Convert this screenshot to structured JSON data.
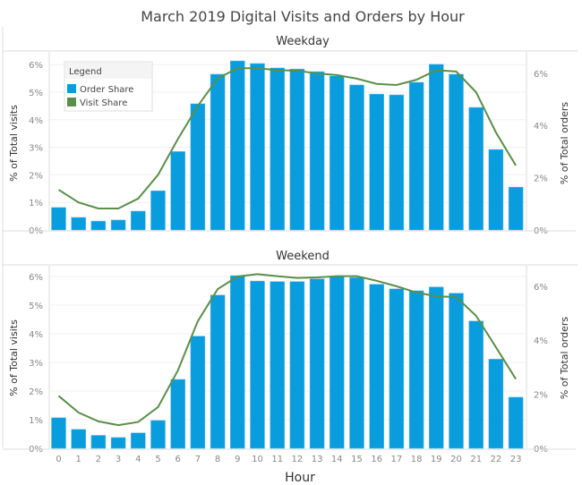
{
  "chart_data": {
    "title": "March 2019 Digital Visits and Orders by Hour",
    "xlabel": "Hour",
    "categories": [
      "0",
      "1",
      "2",
      "3",
      "4",
      "5",
      "6",
      "7",
      "8",
      "9",
      "10",
      "11",
      "12",
      "13",
      "14",
      "15",
      "16",
      "17",
      "18",
      "19",
      "20",
      "21",
      "22",
      "23"
    ],
    "legend": {
      "title": "Legend",
      "placement": "top-left",
      "items": [
        {
          "name": "Order Share",
          "color": "#0a9ddd"
        },
        {
          "name": "Visit Share",
          "color": "#5a8f48"
        }
      ]
    },
    "colors": {
      "bar": "#0a9ddd",
      "line": "#5a8f48"
    },
    "panels": [
      {
        "title": "Weekday",
        "type": "bar+line",
        "left_axis": {
          "label": "% of Total visits",
          "range": [
            0,
            6.5
          ],
          "ticks": [
            "0%",
            "1%",
            "2%",
            "3%",
            "4%",
            "5%",
            "6%"
          ]
        },
        "right_axis": {
          "label": "% of Total orders",
          "range": [
            0,
            6.8
          ],
          "ticks": [
            "0%",
            "2%",
            "4%",
            "6%"
          ]
        },
        "series": [
          {
            "name": "Order Share",
            "type": "bar",
            "axis": "right",
            "values": [
              0.86,
              0.48,
              0.34,
              0.38,
              0.72,
              1.5,
              3.0,
              4.83,
              5.96,
              6.47,
              6.37,
              6.2,
              6.16,
              6.06,
              5.89,
              5.55,
              5.2,
              5.17,
              5.65,
              6.34,
              5.96,
              4.69,
              3.08,
              1.64
            ]
          },
          {
            "name": "Visit Share",
            "type": "line",
            "axis": "left",
            "values": [
              1.46,
              1.0,
              0.78,
              0.78,
              1.14,
              2.0,
              3.3,
              4.5,
              5.5,
              5.87,
              5.87,
              5.8,
              5.78,
              5.68,
              5.62,
              5.49,
              5.3,
              5.26,
              5.45,
              5.8,
              5.75,
              5.0,
              3.54,
              2.34
            ]
          }
        ]
      },
      {
        "title": "Weekend",
        "type": "bar+line",
        "left_axis": {
          "label": "% of Total visits",
          "range": [
            0,
            6.5
          ],
          "ticks": [
            "0%",
            "1%",
            "2%",
            "3%",
            "4%",
            "5%",
            "6%"
          ]
        },
        "right_axis": {
          "label": "% of Total orders",
          "range": [
            0,
            6.8
          ],
          "ticks": [
            "0%",
            "2%",
            "4%",
            "6%"
          ]
        },
        "series": [
          {
            "name": "Order Share",
            "type": "bar",
            "axis": "right",
            "values": [
              1.13,
              0.7,
              0.48,
              0.4,
              0.57,
              1.03,
              2.55,
              4.15,
              5.67,
              6.39,
              6.19,
              6.17,
              6.17,
              6.27,
              6.37,
              6.32,
              6.07,
              5.9,
              5.83,
              5.97,
              5.74,
              4.71,
              3.3,
              1.89
            ]
          },
          {
            "name": "Visit Share",
            "type": "line",
            "axis": "left",
            "values": [
              1.83,
              1.25,
              0.94,
              0.81,
              0.92,
              1.44,
              2.72,
              4.44,
              5.56,
              6.0,
              6.08,
              6.01,
              5.95,
              5.97,
              6.01,
              6.01,
              5.85,
              5.66,
              5.44,
              5.31,
              5.28,
              4.63,
              3.53,
              2.42
            ]
          }
        ]
      }
    ],
    "grid": true
  }
}
